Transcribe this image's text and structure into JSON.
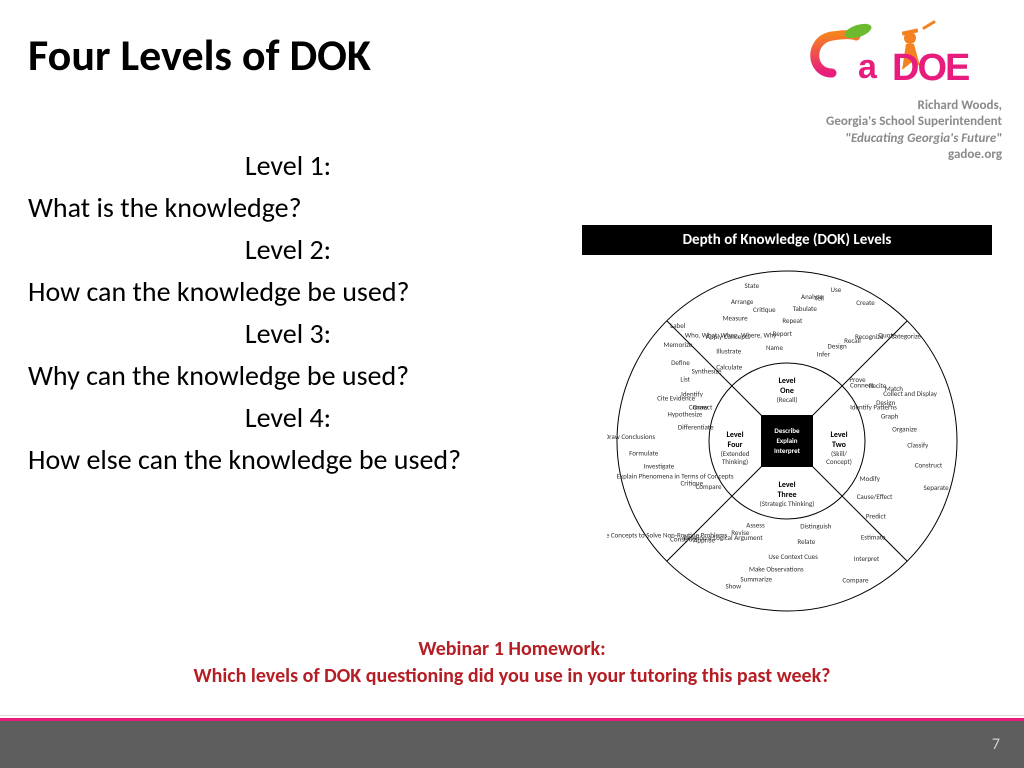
{
  "title": "Four Levels of DOK",
  "logo": {
    "name_line": "Richard Woods,",
    "title_line": "Georgia's School Superintendent",
    "tagline": "\"Educating Georgia's Future\"",
    "url": "gadoe.org",
    "colors": {
      "orange": "#f58220",
      "magenta": "#e81c7d",
      "green": "#6cbb2f"
    }
  },
  "levels": [
    {
      "label": "Level 1:",
      "question": "What is the knowledge?"
    },
    {
      "label": "Level 2:",
      "question": "How can the knowledge be used?"
    },
    {
      "label": "Level 3:",
      "question": "Why can the knowledge be used?"
    },
    {
      "label": "Level 4:",
      "question": "How else can the knowledge be used?"
    }
  ],
  "homework": {
    "line1": "Webinar 1 Homework:",
    "line2": "Which levels of DOK questioning did you use in your tutoring this past week?",
    "color": "#b41e24"
  },
  "footer": {
    "bar_color": "#5e5e5e",
    "accent_color": "#e81c7d",
    "page_number": "7"
  },
  "dok": {
    "header": "Depth of Knowledge (DOK) Levels",
    "center": [
      "Describe",
      "Explain",
      "Interpret"
    ],
    "quadrants": {
      "one": {
        "title": "Level",
        "sub": "One",
        "note": "(Recall)"
      },
      "two": {
        "title": "Level",
        "sub": "Two",
        "note": "(Skill/\nConcept)"
      },
      "three": {
        "title": "Level",
        "sub": "Three",
        "note": "(Strategic Thinking)"
      },
      "four": {
        "title": "Level",
        "sub": "Four",
        "note": "(Extended\nThinking)"
      }
    },
    "ring_terms": {
      "one": [
        "Draw",
        "Identify",
        "List",
        "Define",
        "Memorize",
        "Label",
        "Calculate",
        "Illustrate",
        "Who, What, When, Where, Why",
        "Measure",
        "Arrange",
        "State",
        "Name",
        "Report",
        "Repeat",
        "Tabulate",
        "Tell",
        "Use",
        "Infer",
        "Design",
        "Recall",
        "Recognize",
        "Quote",
        "Categorize",
        "Connect",
        "Recite",
        "Match",
        "Collect and Display"
      ],
      "two": [
        "Identify Patterns",
        "Graph",
        "Organize",
        "Classify",
        "Construct",
        "Separate",
        "Modify",
        "Cause/Effect",
        "Predict",
        "Estimate",
        "Interpret",
        "Compare",
        "Distinguish",
        "Relate",
        "Use Context Cues",
        "Make Observations",
        "Summarize",
        "Show"
      ],
      "three": [
        "Assess",
        "Revise",
        "Develop a Logical Argument",
        "Apprise",
        "Construct",
        "Use Concepts to Solve Non-Routine Problems",
        "Compare",
        "Critique",
        "Explain Phenomena in Terms of Concepts",
        "Investigate",
        "Formulate",
        "Draw Conclusions",
        "Differentiate",
        "Hypothesize",
        "Cite Evidence"
      ],
      "four": [
        "Connect",
        "Synthesize",
        "Apply Concepts",
        "Critique",
        "Analyze",
        "Create",
        "Prove",
        "Design"
      ]
    }
  }
}
